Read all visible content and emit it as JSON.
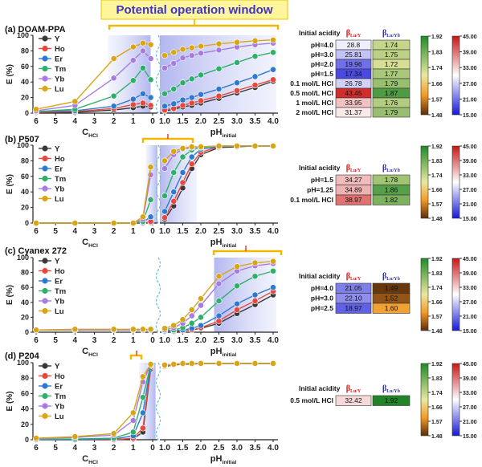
{
  "header": {
    "title": "Potential operation window"
  },
  "colors": {
    "Y": "#3a3a3a",
    "Ho": "#e8473c",
    "Er": "#2e7ad1",
    "Tm": "#2fb06a",
    "Yb": "#a77be0",
    "Lu": "#d8a514",
    "window": "#b9bdf0",
    "bracket": "#f4b700",
    "dash": "#6fc4d4"
  },
  "table_common": {
    "col1": "Initial acidity",
    "col2": "βLu/Y",
    "col3": "βLu/Yb"
  },
  "colorbars": {
    "left": {
      "ticks": [
        "1.92",
        "1.83",
        "1.74",
        "1.66",
        "1.57",
        "1.48"
      ]
    },
    "right": {
      "ticks": [
        "45.00",
        "39.00",
        "33.00",
        "27.00",
        "21.00",
        "15.00"
      ]
    }
  },
  "chart_data": [
    {
      "type": "line",
      "panel_label": "(a) DOAM-PPA",
      "ylabel": "E (%)",
      "xlabel_left": "CHCl",
      "xlabel_right": "pHinitial",
      "ylim": [
        0,
        100
      ],
      "yticks": [
        "0",
        "20",
        "40",
        "60",
        "80",
        "100"
      ],
      "left_ticks": [
        "6",
        "5",
        "4",
        "3",
        "2",
        "1",
        "0"
      ],
      "right_ticks": [
        "1.0",
        "1.5",
        "2.0",
        "2.5",
        "3.0",
        "3.5",
        "4.0"
      ],
      "legend": [
        "Y",
        "Ho",
        "Er",
        "Tm",
        "Yb",
        "Lu"
      ],
      "left_x": [
        6,
        4,
        2,
        1,
        0.5,
        0.1
      ],
      "right_x": [
        1.0,
        1.25,
        1.5,
        1.75,
        2.0,
        2.5,
        3.0,
        3.5,
        4.0
      ],
      "series": [
        {
          "name": "Y",
          "left": [
            1,
            1,
            4,
            7,
            9,
            8
          ],
          "right": [
            3,
            5,
            8,
            10,
            13,
            19,
            26,
            33,
            41
          ]
        },
        {
          "name": "Ho",
          "left": [
            1,
            2,
            6,
            11,
            13,
            10
          ],
          "right": [
            4,
            6,
            10,
            13,
            16,
            22,
            29,
            36,
            43
          ]
        },
        {
          "name": "Er",
          "left": [
            2,
            3,
            9,
            18,
            25,
            20
          ],
          "right": [
            9,
            12,
            17,
            20,
            24,
            31,
            39,
            47,
            56
          ]
        },
        {
          "name": "Tm",
          "left": [
            2,
            5,
            22,
            42,
            58,
            43
          ],
          "right": [
            25,
            31,
            39,
            44,
            49,
            57,
            65,
            73,
            78
          ]
        },
        {
          "name": "Yb",
          "left": [
            3,
            10,
            45,
            68,
            80,
            70
          ],
          "right": [
            58,
            64,
            71,
            74,
            77,
            81,
            85,
            88,
            90
          ]
        },
        {
          "name": "Lu",
          "left": [
            5,
            15,
            70,
            85,
            90,
            88
          ],
          "right": [
            74,
            78,
            82,
            84,
            86,
            89,
            91,
            93,
            94
          ]
        }
      ],
      "window_left": [
        2.3,
        0.35
      ],
      "window_right": [
        1.0,
        4.0
      ],
      "table": {
        "rows": [
          {
            "acidity": "pH=4.0",
            "b1": "28.8",
            "b2": "1.74"
          },
          {
            "acidity": "pH=3.0",
            "b1": "25.81",
            "b2": "1.75"
          },
          {
            "acidity": "pH=2.0",
            "b1": "19.96",
            "b2": "1.72"
          },
          {
            "acidity": "pH=1.5",
            "b1": "17.34",
            "b2": "1.77"
          },
          {
            "acidity": "0.1 mol/L HCl",
            "b1": "26.78",
            "b2": "1.79"
          },
          {
            "acidity": "0.5 mol/L HCl",
            "b1": "43.45",
            "b2": "1.87"
          },
          {
            "acidity": "1 mol/L HCl",
            "b1": "33.95",
            "b2": "1.76"
          },
          {
            "acidity": "2 mol/L HCl",
            "b1": "31.37",
            "b2": "1.79"
          }
        ]
      }
    },
    {
      "type": "line",
      "panel_label": "(b) P507",
      "ylabel": "E (%)",
      "xlabel_left": "CHCl",
      "xlabel_right": "pHinitial",
      "ylim": [
        0,
        100
      ],
      "yticks": [
        "0",
        "20",
        "40",
        "60",
        "80",
        "100"
      ],
      "left_ticks": [
        "6",
        "5",
        "4",
        "3",
        "2",
        "1",
        "0"
      ],
      "right_ticks": [
        "1.0",
        "1.5",
        "2.0",
        "2.5",
        "3.0",
        "3.5",
        "4.0"
      ],
      "legend": [
        "Y",
        "Ho",
        "Er",
        "Tm",
        "Yb",
        "Lu"
      ],
      "left_x": [
        6,
        4,
        2,
        1,
        0.5,
        0.1
      ],
      "right_x": [
        1.0,
        1.25,
        1.5,
        1.75,
        2.0,
        2.5,
        3.0,
        3.5,
        4.0
      ],
      "series": [
        {
          "name": "Y",
          "left": [
            0,
            0,
            0,
            0,
            0,
            1
          ],
          "right": [
            5,
            22,
            45,
            70,
            88,
            97,
            98,
            99,
            99
          ]
        },
        {
          "name": "Ho",
          "left": [
            0,
            0,
            0,
            0,
            0,
            2
          ],
          "right": [
            7,
            28,
            52,
            76,
            91,
            98,
            99,
            99,
            99
          ]
        },
        {
          "name": "Er",
          "left": [
            0,
            0,
            0,
            0,
            1,
            8
          ],
          "right": [
            15,
            40,
            65,
            85,
            95,
            98,
            99,
            99,
            99
          ]
        },
        {
          "name": "Tm",
          "left": [
            0,
            0,
            0,
            0,
            2,
            30
          ],
          "right": [
            35,
            65,
            85,
            94,
            97,
            99,
            99,
            99,
            99
          ]
        },
        {
          "name": "Yb",
          "left": [
            0,
            0,
            0,
            0,
            5,
            62
          ],
          "right": [
            70,
            88,
            95,
            97,
            98,
            99,
            99,
            99,
            99
          ]
        },
        {
          "name": "Lu",
          "left": [
            0,
            0,
            0,
            0,
            8,
            72
          ],
          "right": [
            80,
            92,
            96,
            98,
            98,
            99,
            99,
            99,
            99
          ]
        }
      ],
      "window_left": [
        0.35,
        0
      ],
      "window_right": [
        1.0,
        1.8
      ],
      "table": {
        "rows": [
          {
            "acidity": "pH=1.5",
            "b1": "34.27",
            "b2": "1.78"
          },
          {
            "acidity": "pH=1.25",
            "b1": "34.89",
            "b2": "1.86"
          },
          {
            "acidity": "0.1 mol/L HCl",
            "b1": "38.97",
            "b2": "1.82"
          }
        ]
      }
    },
    {
      "type": "line",
      "panel_label": "(c) Cyanex 272",
      "ylabel": "E (%)",
      "xlabel_left": "CHCl",
      "xlabel_right": "pHinitial",
      "ylim": [
        0,
        100
      ],
      "yticks": [
        "0",
        "20",
        "40",
        "60",
        "80",
        "100"
      ],
      "left_ticks": [
        "6",
        "5",
        "4",
        "3",
        "2",
        "1",
        "0"
      ],
      "right_ticks": [
        "1.0",
        "1.5",
        "2.0",
        "2.5",
        "3.0",
        "3.5",
        "4.0"
      ],
      "legend": [
        "Y",
        "Ho",
        "Er",
        "Tm",
        "Yb",
        "Lu"
      ],
      "left_x": [
        6,
        4,
        2,
        1,
        0.5,
        0.1
      ],
      "right_x": [
        1.0,
        1.25,
        1.5,
        1.75,
        2.0,
        2.5,
        3.0,
        3.5,
        4.0
      ],
      "series": [
        {
          "name": "Y",
          "left": [
            3,
            3,
            3,
            3,
            3,
            3
          ],
          "right": [
            1,
            1,
            2,
            3,
            5,
            12,
            25,
            37,
            50
          ]
        },
        {
          "name": "Ho",
          "left": [
            3,
            3,
            3,
            3,
            3,
            3
          ],
          "right": [
            1,
            1,
            2,
            3,
            6,
            15,
            30,
            42,
            55
          ]
        },
        {
          "name": "Er",
          "left": [
            3,
            3,
            3,
            3,
            3,
            3
          ],
          "right": [
            1,
            2,
            3,
            5,
            9,
            22,
            38,
            50,
            60
          ]
        },
        {
          "name": "Tm",
          "left": [
            3,
            3,
            3,
            3,
            3,
            3
          ],
          "right": [
            2,
            3,
            6,
            12,
            20,
            42,
            62,
            75,
            82
          ]
        },
        {
          "name": "Yb",
          "left": [
            3,
            3,
            3,
            3,
            3,
            3
          ],
          "right": [
            3,
            6,
            12,
            22,
            36,
            65,
            82,
            89,
            92
          ]
        },
        {
          "name": "Lu",
          "left": [
            3,
            4,
            4,
            4,
            4,
            4
          ],
          "right": [
            5,
            9,
            17,
            30,
            45,
            75,
            88,
            93,
            95
          ]
        }
      ],
      "window_left": [
        0,
        0
      ],
      "window_right": [
        2.5,
        4.0
      ],
      "table": {
        "rows": [
          {
            "acidity": "pH=4.0",
            "b1": "21.05",
            "b2": "1.49"
          },
          {
            "acidity": "pH=3.0",
            "b1": "22.10",
            "b2": "1.52"
          },
          {
            "acidity": "pH=2.5",
            "b1": "18.97",
            "b2": "1.60"
          }
        ]
      }
    },
    {
      "type": "line",
      "panel_label": "(d) P204",
      "ylabel": "E (%)",
      "xlabel_left": "CHCl",
      "xlabel_right": "pHinitial",
      "ylim": [
        0,
        100
      ],
      "yticks": [
        "0",
        "20",
        "40",
        "60",
        "80",
        "100"
      ],
      "left_ticks": [
        "6",
        "5",
        "4",
        "3",
        "2",
        "1",
        "0"
      ],
      "right_ticks": [
        "1.0",
        "1.5",
        "2.0",
        "2.5",
        "3.0",
        "3.5",
        "4.0"
      ],
      "legend": [
        "Y",
        "Ho",
        "Er",
        "Tm",
        "Yb",
        "Lu"
      ],
      "left_x": [
        6,
        4,
        2,
        1,
        0.5,
        0.1
      ],
      "right_x": [
        1.0,
        1.25,
        1.5,
        1.75,
        2.0,
        2.5,
        3.0,
        3.5,
        4.0
      ],
      "series": [
        {
          "name": "Y",
          "left": [
            0,
            0,
            0,
            1,
            10,
            92
          ],
          "right": [
            95,
            97,
            98,
            98,
            99,
            99,
            99,
            99,
            99
          ]
        },
        {
          "name": "Ho",
          "left": [
            0,
            0,
            0,
            2,
            15,
            94
          ],
          "right": [
            95,
            97,
            98,
            98,
            99,
            99,
            99,
            99,
            99
          ]
        },
        {
          "name": "Er",
          "left": [
            0,
            0,
            1,
            5,
            35,
            96
          ],
          "right": [
            96,
            98,
            98,
            99,
            99,
            99,
            99,
            99,
            99
          ]
        },
        {
          "name": "Tm",
          "left": [
            0,
            1,
            2,
            10,
            55,
            97
          ],
          "right": [
            96,
            98,
            99,
            99,
            99,
            99,
            99,
            99,
            99
          ]
        },
        {
          "name": "Yb",
          "left": [
            1,
            3,
            6,
            25,
            75,
            98
          ],
          "right": [
            97,
            98,
            99,
            99,
            99,
            99,
            99,
            99,
            99
          ]
        },
        {
          "name": "Lu",
          "left": [
            2,
            4,
            8,
            35,
            82,
            98
          ],
          "right": [
            97,
            98,
            99,
            99,
            99,
            99,
            99,
            99,
            99
          ]
        }
      ],
      "window_left": [
        0.7,
        0.1
      ],
      "window_right": [
        1.0,
        1.0
      ],
      "table": {
        "rows": [
          {
            "acidity": "0.5 mol/L HCl",
            "b1": "32.42",
            "b2": "1.92"
          }
        ]
      }
    }
  ]
}
